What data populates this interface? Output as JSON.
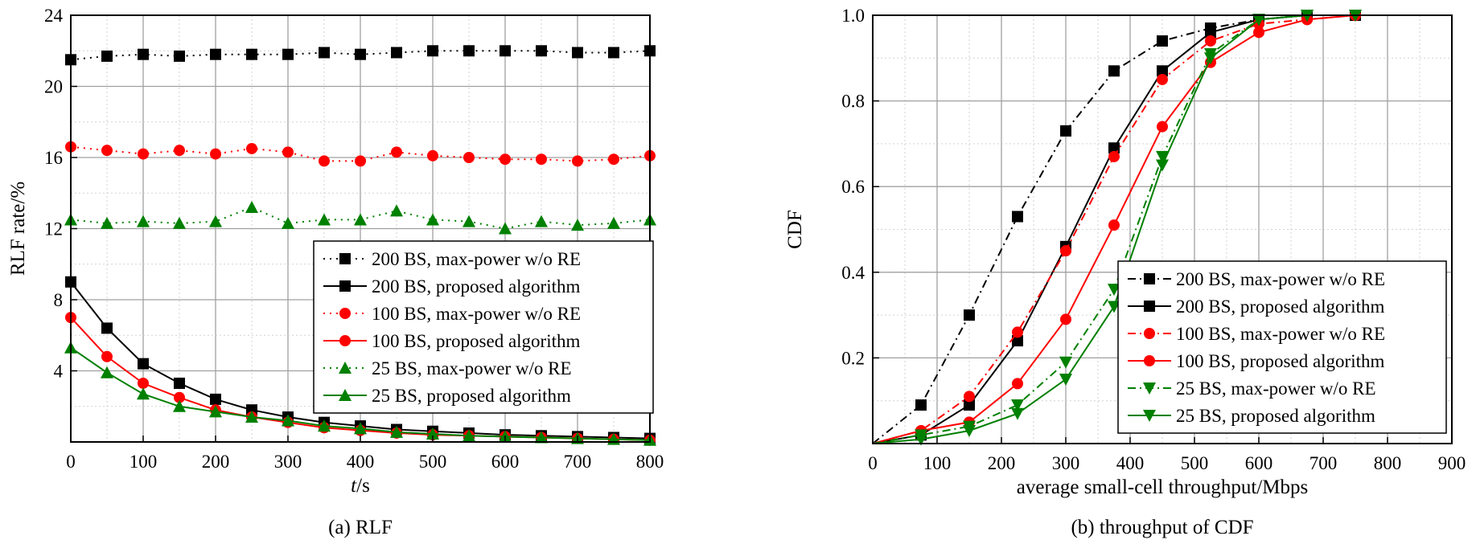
{
  "chart_data": [
    {
      "type": "line",
      "caption": "(a) RLF",
      "xlabel_main": "t",
      "xlabel_unit": "/s",
      "ylabel": "RLF rate/%",
      "xlim": [
        0,
        800
      ],
      "ylim": [
        0,
        24
      ],
      "xticks": [
        0,
        100,
        200,
        300,
        400,
        500,
        600,
        700,
        800
      ],
      "yticks": [
        4,
        8,
        12,
        16,
        20,
        24
      ],
      "grid": true,
      "legend_position": "bottom-right",
      "series": [
        {
          "name": "200 BS, max-power w/o RE",
          "color": "#000000",
          "marker": "square",
          "dash": "dotted",
          "x": [
            0,
            50,
            100,
            150,
            200,
            250,
            300,
            350,
            400,
            450,
            500,
            550,
            600,
            650,
            700,
            750,
            800
          ],
          "y": [
            21.5,
            21.7,
            21.8,
            21.7,
            21.8,
            21.8,
            21.8,
            21.9,
            21.8,
            21.9,
            22.0,
            22.0,
            22.0,
            22.0,
            21.9,
            21.9,
            22.0
          ]
        },
        {
          "name": "200 BS, proposed algorithm",
          "color": "#000000",
          "marker": "square",
          "dash": "solid",
          "x": [
            0,
            50,
            100,
            150,
            200,
            250,
            300,
            350,
            400,
            450,
            500,
            550,
            600,
            650,
            700,
            750,
            800
          ],
          "y": [
            9.0,
            6.4,
            4.4,
            3.3,
            2.4,
            1.8,
            1.4,
            1.1,
            0.9,
            0.7,
            0.6,
            0.5,
            0.4,
            0.35,
            0.3,
            0.25,
            0.2
          ]
        },
        {
          "name": "100 BS, max-power w/o RE",
          "color": "#ff0000",
          "marker": "circle",
          "dash": "dotted",
          "x": [
            0,
            50,
            100,
            150,
            200,
            250,
            300,
            350,
            400,
            450,
            500,
            550,
            600,
            650,
            700,
            750,
            800
          ],
          "y": [
            16.6,
            16.4,
            16.2,
            16.4,
            16.2,
            16.5,
            16.3,
            15.8,
            15.8,
            16.3,
            16.1,
            16.0,
            15.9,
            15.9,
            15.8,
            15.9,
            16.1
          ]
        },
        {
          "name": "100 BS, proposed algorithm",
          "color": "#ff0000",
          "marker": "circle",
          "dash": "solid",
          "x": [
            0,
            50,
            100,
            150,
            200,
            250,
            300,
            350,
            400,
            450,
            500,
            550,
            600,
            650,
            700,
            750,
            800
          ],
          "y": [
            7.0,
            4.8,
            3.3,
            2.5,
            1.8,
            1.4,
            1.1,
            0.8,
            0.65,
            0.5,
            0.4,
            0.35,
            0.3,
            0.25,
            0.2,
            0.15,
            0.1
          ]
        },
        {
          "name": "25 BS, max-power w/o RE",
          "color": "#008000",
          "marker": "triangle-up",
          "dash": "dotted",
          "x": [
            0,
            50,
            100,
            150,
            200,
            250,
            300,
            350,
            400,
            450,
            500,
            550,
            600,
            650,
            700,
            750,
            800
          ],
          "y": [
            12.5,
            12.3,
            12.4,
            12.3,
            12.4,
            13.2,
            12.3,
            12.5,
            12.5,
            13.0,
            12.5,
            12.4,
            12.0,
            12.4,
            12.2,
            12.3,
            12.5
          ]
        },
        {
          "name": "25 BS, proposed algorithm",
          "color": "#008000",
          "marker": "triangle-up",
          "dash": "solid",
          "x": [
            0,
            50,
            100,
            150,
            200,
            250,
            300,
            350,
            400,
            450,
            500,
            550,
            600,
            650,
            700,
            750,
            800
          ],
          "y": [
            5.3,
            3.9,
            2.7,
            2.0,
            1.7,
            1.4,
            1.2,
            0.9,
            0.75,
            0.55,
            0.45,
            0.35,
            0.3,
            0.25,
            0.2,
            0.15,
            0.1
          ]
        }
      ]
    },
    {
      "type": "line",
      "caption": "(b) throughput of CDF",
      "xlabel": "average small-cell throughput/Mbps",
      "ylabel": "CDF",
      "xlim": [
        0,
        900
      ],
      "ylim": [
        0,
        1.0
      ],
      "xticks": [
        0,
        100,
        200,
        300,
        400,
        500,
        600,
        700,
        800,
        900
      ],
      "yticks": [
        0.2,
        0.4,
        0.6,
        0.8,
        1.0
      ],
      "grid": true,
      "legend_position": "bottom-right",
      "series": [
        {
          "name": "200 BS, max-power w/o RE",
          "color": "#000000",
          "marker": "square",
          "dash": "dashdot",
          "x": [
            0,
            75,
            150,
            225,
            300,
            375,
            450,
            525,
            600,
            675,
            750
          ],
          "y": [
            0.0,
            0.09,
            0.3,
            0.53,
            0.73,
            0.87,
            0.94,
            0.97,
            0.99,
            1.0,
            1.0
          ]
        },
        {
          "name": "200 BS, proposed algorithm",
          "color": "#000000",
          "marker": "square",
          "dash": "solid",
          "x": [
            0,
            75,
            150,
            225,
            300,
            375,
            450,
            525,
            600,
            675,
            750
          ],
          "y": [
            0.0,
            0.02,
            0.09,
            0.24,
            0.46,
            0.69,
            0.87,
            0.96,
            0.99,
            1.0,
            1.0
          ]
        },
        {
          "name": "100 BS, max-power w/o RE",
          "color": "#ff0000",
          "marker": "circle",
          "dash": "dashdot",
          "x": [
            0,
            75,
            150,
            225,
            300,
            375,
            450,
            525,
            600,
            675,
            750
          ],
          "y": [
            0.0,
            0.03,
            0.11,
            0.26,
            0.45,
            0.67,
            0.85,
            0.94,
            0.98,
            0.99,
            1.0
          ]
        },
        {
          "name": "100 BS, proposed algorithm",
          "color": "#ff0000",
          "marker": "circle",
          "dash": "solid",
          "x": [
            0,
            75,
            150,
            225,
            300,
            375,
            450,
            525,
            600,
            675,
            750
          ],
          "y": [
            0.0,
            0.03,
            0.05,
            0.14,
            0.29,
            0.51,
            0.74,
            0.89,
            0.96,
            0.99,
            1.0
          ]
        },
        {
          "name": "25 BS, max-power w/o RE",
          "color": "#008000",
          "marker": "triangle-down",
          "dash": "dashdot",
          "x": [
            0,
            75,
            150,
            225,
            300,
            375,
            450,
            525,
            600,
            675,
            750
          ],
          "y": [
            0.0,
            0.02,
            0.04,
            0.09,
            0.19,
            0.36,
            0.67,
            0.91,
            0.99,
            1.0,
            1.0
          ]
        },
        {
          "name": "25 BS, proposed algorithm",
          "color": "#008000",
          "marker": "triangle-down",
          "dash": "solid",
          "x": [
            0,
            75,
            150,
            225,
            300,
            375,
            450,
            525,
            600,
            675,
            750
          ],
          "y": [
            0.0,
            0.01,
            0.03,
            0.07,
            0.15,
            0.32,
            0.65,
            0.9,
            0.99,
            1.0,
            1.0
          ]
        }
      ]
    }
  ]
}
